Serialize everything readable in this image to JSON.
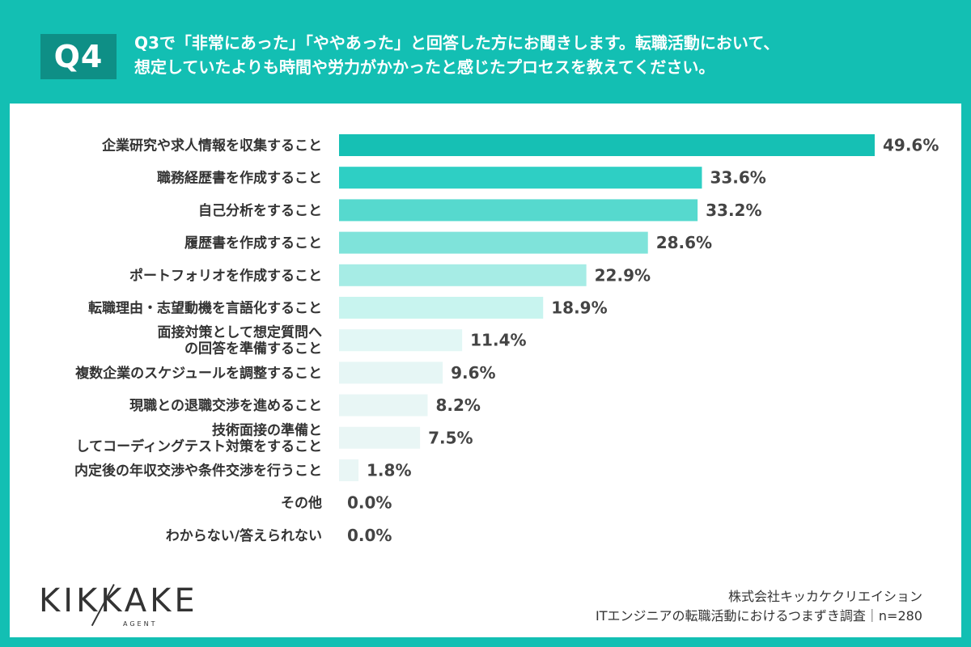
{
  "header": {
    "badge": "Q4",
    "question_line1": "Q3で「非常にあった」「ややあった」と回答した方にお聞きします。転職活動において、",
    "question_line2": "想定していたよりも時間や労力がかかったと感じたプロセスを教えてください。"
  },
  "colors": {
    "background": "#13bfb3",
    "badge": "#0e8f86",
    "bar_gradient": [
      "#16c0b4",
      "#2ecfc4",
      "#56d9ce",
      "#7fe3da",
      "#a6ece5",
      "#c8f4ef",
      "#e2f7f5",
      "#e6f6f5",
      "#e8f6f5",
      "#e9f6f5",
      "#e9f6f5",
      "#ecf6f5",
      "#ecf6f5"
    ]
  },
  "chart_data": {
    "type": "bar",
    "orientation": "horizontal",
    "categories": [
      "企業研究や求人情報を収集すること",
      "職務経歴書を作成すること",
      "自己分析をすること",
      "履歴書を作成すること",
      "ポートフォリオを作成すること",
      "転職理由・志望動機を言語化すること",
      "面接対策として想定質問への回答を準備すること",
      "複数企業のスケジュールを調整すること",
      "現職との退職交渉を進めること",
      "技術面接の準備としてコーディングテスト対策をすること",
      "内定後の年収交渉や条件交渉を行うこと",
      "その他",
      "わからない/答えられない"
    ],
    "category_lines": [
      [
        "企業研究や求人情報を収集すること"
      ],
      [
        "職務経歴書を作成すること"
      ],
      [
        "自己分析をすること"
      ],
      [
        "履歴書を作成すること"
      ],
      [
        "ポートフォリオを作成すること"
      ],
      [
        "転職理由・志望動機を言語化すること"
      ],
      [
        "面接対策として想定質問へ",
        "の回答を準備すること"
      ],
      [
        "複数企業のスケジュールを調整すること"
      ],
      [
        "現職との退職交渉を進めること"
      ],
      [
        "技術面接の準備と",
        "してコーディングテスト対策をすること"
      ],
      [
        "内定後の年収交渉や条件交渉を行うこと"
      ],
      [
        "その他"
      ],
      [
        "わからない/答えられない"
      ]
    ],
    "values": [
      49.6,
      33.6,
      33.2,
      28.6,
      22.9,
      18.9,
      11.4,
      9.6,
      8.2,
      7.5,
      1.8,
      0.0,
      0.0
    ],
    "value_labels": [
      "49.6%",
      "33.6%",
      "33.2%",
      "28.6%",
      "22.9%",
      "18.9%",
      "11.4%",
      "9.6%",
      "8.2%",
      "7.5%",
      "1.8%",
      "0.0%",
      "0.0%"
    ],
    "xlim": [
      0,
      49.6
    ],
    "unit": "%",
    "grid": false,
    "legend": "none"
  },
  "logo": {
    "name": "KIKKAKE",
    "sub": "AGENT"
  },
  "footer": {
    "company": "株式会社キッカケクリエイション",
    "survey": "ITエンジニアの転職活動におけるつまずき調査｜n=280"
  }
}
